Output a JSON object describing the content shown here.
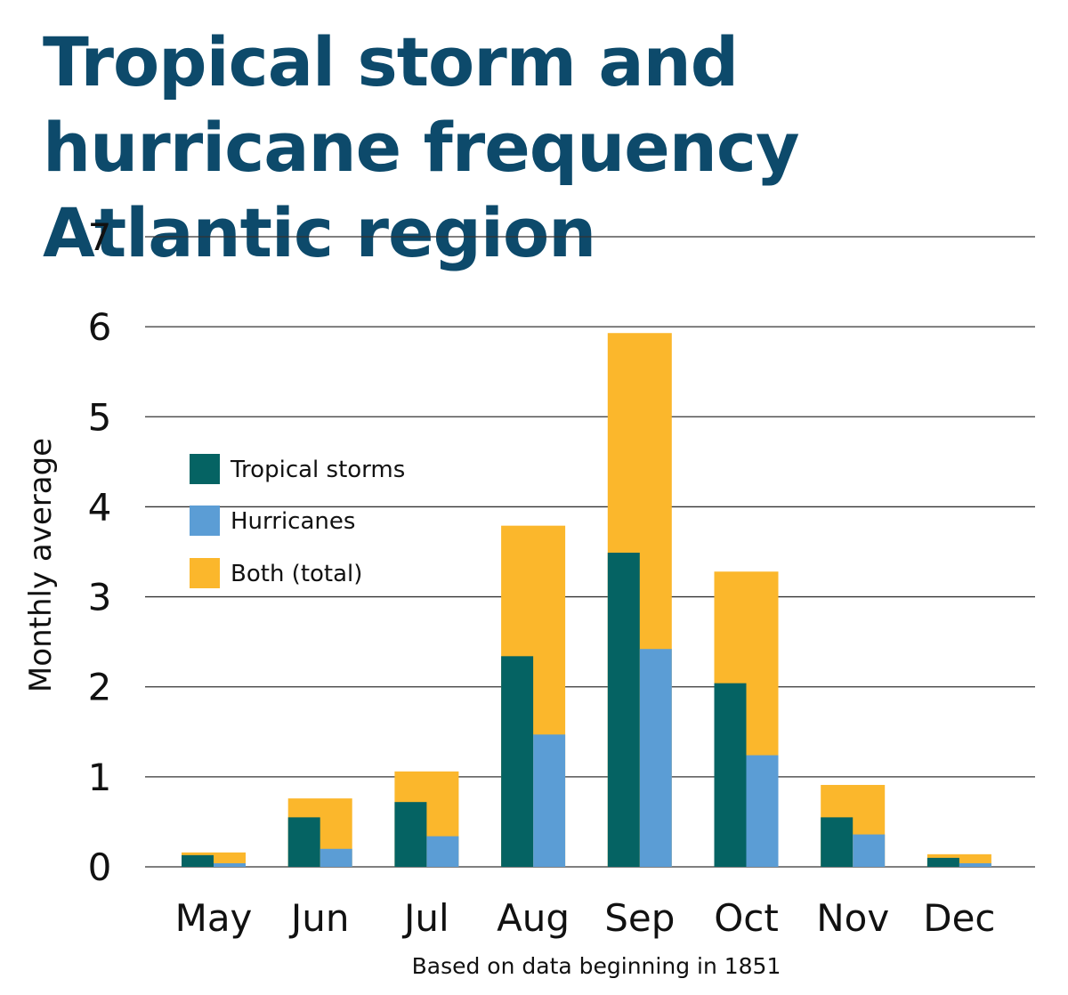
{
  "chart_data": {
    "type": "bar",
    "title": "Tropical storm and hurricane frequency Atlantic region",
    "ylabel": "Monthly average",
    "xlabel": "",
    "caption": "Based on data beginning in 1851",
    "ylim": [
      0,
      7
    ],
    "yticks": [
      "0",
      "1",
      "2",
      "3",
      "4",
      "5",
      "6",
      "7"
    ],
    "grid": true,
    "legend_position": "left",
    "categories": [
      "May",
      "Jun",
      "Jul",
      "Aug",
      "Sep",
      "Oct",
      "Nov",
      "Dec"
    ],
    "series": [
      {
        "name": "Tropical storms",
        "color": "#056363",
        "values": [
          0.13,
          0.55,
          0.72,
          2.34,
          3.49,
          2.04,
          0.55,
          0.1
        ]
      },
      {
        "name": "Hurricanes",
        "color": "#5b9dd5",
        "values": [
          0.04,
          0.2,
          0.34,
          1.47,
          2.42,
          1.24,
          0.36,
          0.04
        ]
      },
      {
        "name": "Both (total)",
        "color": "#fbb72c",
        "values": [
          0.16,
          0.76,
          1.06,
          3.79,
          5.93,
          3.28,
          0.91,
          0.14
        ]
      }
    ]
  }
}
